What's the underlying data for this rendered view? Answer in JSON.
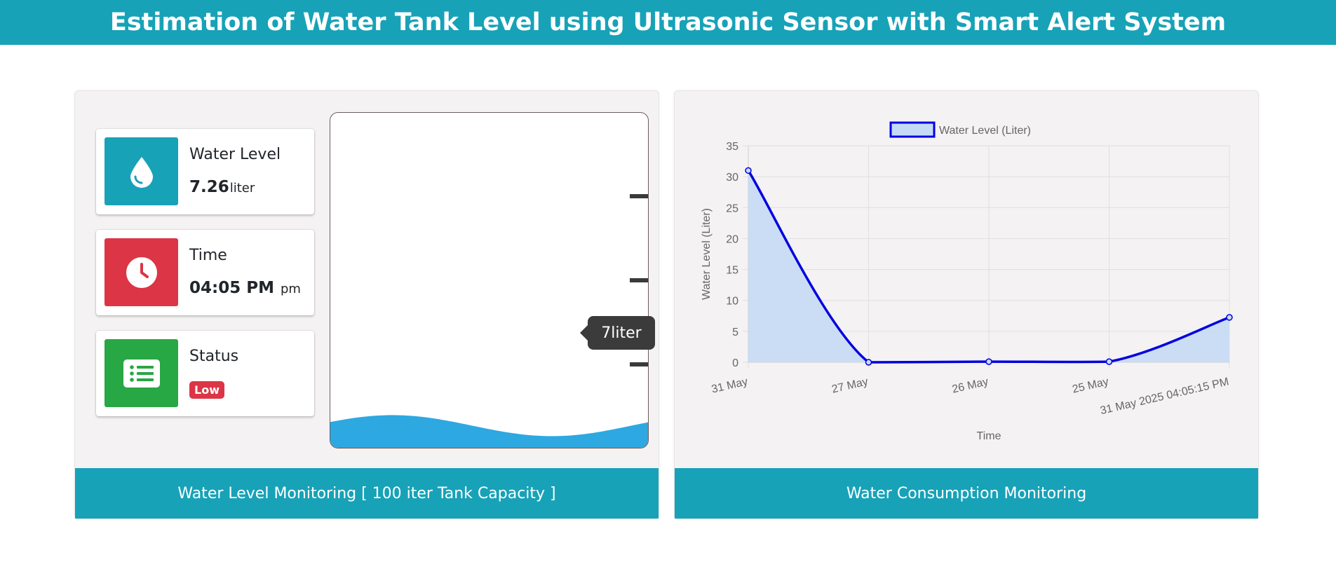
{
  "header": {
    "title": "Estimation of Water Tank Level using Ultrasonic Sensor with Smart Alert System"
  },
  "left_panel": {
    "water_level": {
      "title": "Water Level",
      "value": "7.26",
      "unit": "liter",
      "icon": "water-drop-icon",
      "color": "#17a2b8"
    },
    "time": {
      "title": "Time",
      "value": "04:05 PM",
      "unit": "pm",
      "icon": "clock-icon",
      "color": "#dc3545"
    },
    "status": {
      "title": "Status",
      "badge": "Low",
      "icon": "list-icon",
      "color": "#28a745",
      "badge_color": "#dc3545"
    },
    "tank": {
      "fill_fraction": 0.07,
      "water_color": "#2ea8e0",
      "tooltip": "7liter"
    },
    "footer": "Water Level Monitoring [ 100 iter Tank Capacity ]"
  },
  "right_panel": {
    "footer": "Water Consumption Monitoring"
  },
  "chart_data": {
    "type": "area",
    "categories": [
      "31 May",
      "27 May",
      "26 May",
      "25 May",
      "31 May 2025 04:05:15 PM"
    ],
    "series": [
      {
        "name": "Water Level (Liter)",
        "values": [
          31,
          0,
          0.1,
          0.1,
          7.26
        ],
        "color": "#0000e0",
        "fill": "#c5daf4"
      }
    ],
    "xlabel": "Time",
    "ylabel": "Water Level (Liter)",
    "ylim": [
      0,
      35
    ],
    "yticks": [
      0,
      5,
      10,
      15,
      20,
      25,
      30,
      35
    ],
    "grid": true,
    "legend": "top-center"
  }
}
